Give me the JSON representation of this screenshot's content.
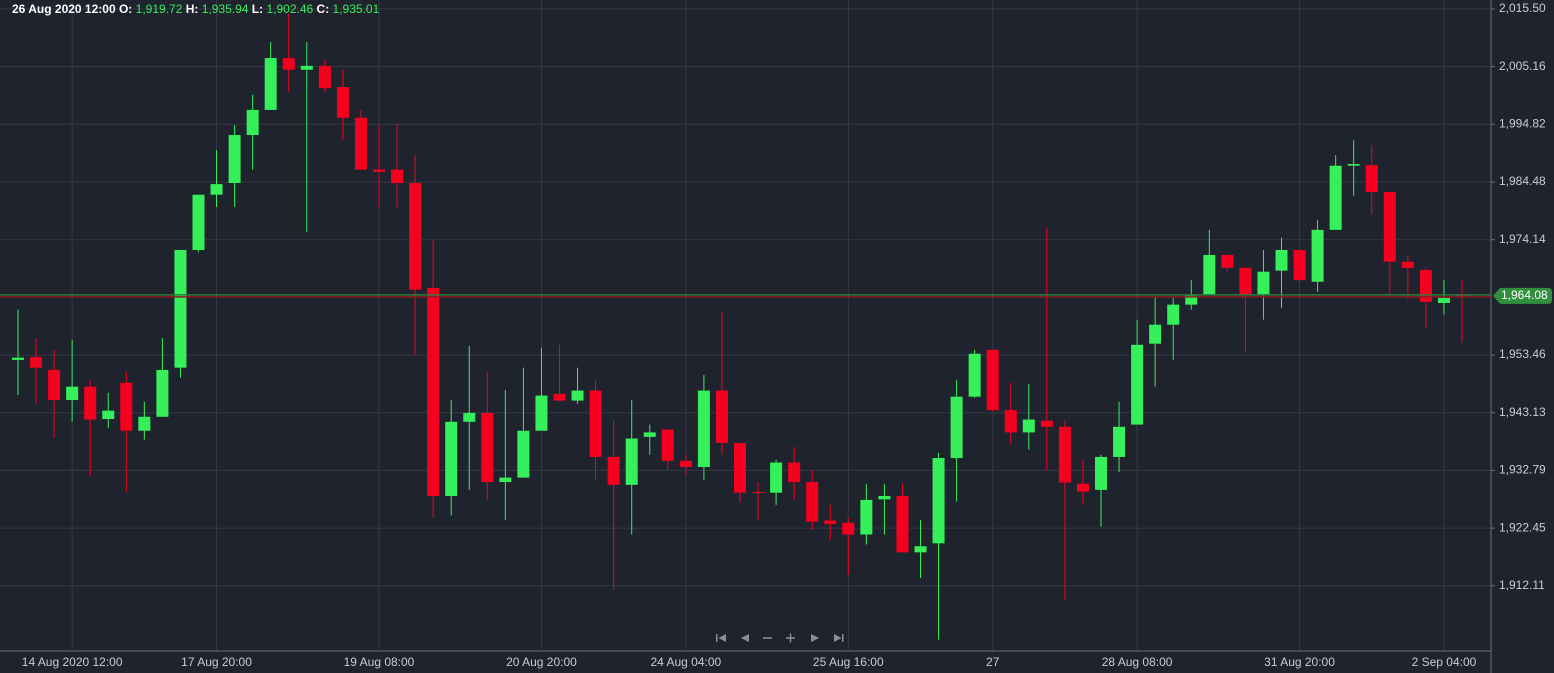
{
  "header": {
    "time": "26 Aug 2020 12:00",
    "fields": [
      {
        "label": "O:",
        "value": "1,919.72"
      },
      {
        "label": "H:",
        "value": "1,935.94"
      },
      {
        "label": "L:",
        "value": "1,902.46"
      },
      {
        "label": "C:",
        "value": "1,935.01"
      }
    ]
  },
  "chart_data": {
    "type": "candlestick",
    "categories": [
      null,
      null,
      null,
      "14 Aug 2020 12:00",
      null,
      null,
      null,
      null,
      null,
      null,
      null,
      "17 Aug 20:00",
      null,
      null,
      null,
      null,
      null,
      null,
      null,
      null,
      "19 Aug 08:00",
      null,
      null,
      null,
      null,
      null,
      null,
      null,
      null,
      "20 Aug 20:00",
      null,
      null,
      null,
      null,
      null,
      null,
      null,
      "24 Aug 04:00",
      null,
      null,
      null,
      null,
      null,
      null,
      null,
      null,
      "25 Aug 16:00",
      null,
      null,
      null,
      null,
      null,
      null,
      null,
      "27",
      null,
      null,
      null,
      null,
      null,
      null,
      null,
      "28 Aug 08:00",
      null,
      null,
      null,
      null,
      null,
      null,
      null,
      null,
      "31 Aug 20:00",
      null,
      null,
      null,
      null,
      null,
      null,
      null,
      "2 Sep 04:00",
      null
    ],
    "open": [
      1952.6,
      1953.1,
      1950.8,
      1945.4,
      1947.8,
      1942.0,
      1948.5,
      1939.9,
      1942.4,
      1951.2,
      1972.3,
      1982.2,
      1984.3,
      1992.9,
      1997.4,
      2006.7,
      2004.6,
      2005.3,
      2001.5,
      1996.0,
      1986.7,
      1986.7,
      1984.3,
      1965.5,
      1928.2,
      1941.5,
      1943.1,
      1930.7,
      1931.5,
      1939.9,
      1946.5,
      1945.3,
      1947.1,
      1935.2,
      1930.2,
      1938.8,
      1940.1,
      1934.5,
      1933.4,
      1947.1,
      1937.7,
      1928.9,
      1928.8,
      1934.2,
      1930.7,
      1923.8,
      1923.4,
      1921.3,
      1927.6,
      1928.2,
      1918.1,
      1919.72,
      1935.0,
      1946.0,
      1954.4,
      1943.6,
      1939.6,
      1941.7,
      1940.6,
      1930.4,
      1929.3,
      1935.2,
      1941.0,
      1955.5,
      1958.9,
      1962.5,
      1964.3,
      1971.4,
      1969.1,
      1964.3,
      1968.6,
      1972.3,
      1966.6,
      1975.9,
      1987.4,
      1987.5,
      1982.7,
      1970.2,
      1968.7,
      1962.8,
      1964.3
    ],
    "high": [
      1961.6,
      1956.5,
      1954.4,
      1956.2,
      1949.0,
      1946.7,
      1950.5,
      1945.1,
      1956.5,
      1972.3,
      1982.2,
      1990.2,
      1994.7,
      2000.1,
      2009.6,
      2014.6,
      2009.6,
      2006.4,
      2004.6,
      1997.4,
      1994.7,
      1994.9,
      1989.3,
      1974.1,
      1945.4,
      1955.1,
      1950.5,
      1947.2,
      1951.2,
      1954.8,
      1955.3,
      1951.2,
      1949.0,
      1941.9,
      1945.4,
      1941.0,
      1940.1,
      1935.6,
      1949.9,
      1961.2,
      1937.7,
      1930.7,
      1934.7,
      1937.0,
      1932.9,
      1926.6,
      1924.3,
      1930.4,
      1930.4,
      1930.4,
      1923.9,
      1935.94,
      1949.0,
      1954.4,
      1954.4,
      1948.5,
      1948.3,
      1976.3,
      1941.7,
      1934.7,
      1935.6,
      1945.1,
      1959.8,
      1963.9,
      1963.7,
      1966.9,
      1975.9,
      1971.4,
      1969.1,
      1972.3,
      1974.5,
      1972.3,
      1977.7,
      1989.3,
      1992.0,
      1991.1,
      1982.7,
      1971.4,
      1969.1,
      1966.9,
      1967.1
    ],
    "low": [
      1946.3,
      1944.7,
      1938.6,
      1941.5,
      1931.8,
      1940.4,
      1929.0,
      1938.3,
      1942.4,
      1949.4,
      1971.9,
      1980.0,
      1980.0,
      1986.7,
      1997.4,
      2000.6,
      1975.5,
      2000.6,
      1992.0,
      1986.7,
      1980.0,
      1980.0,
      1953.5,
      1924.3,
      1924.7,
      1929.3,
      1927.5,
      1923.9,
      1931.5,
      1939.9,
      1945.3,
      1944.7,
      1931.1,
      1911.4,
      1921.3,
      1935.6,
      1932.9,
      1932.0,
      1931.1,
      1935.6,
      1927.0,
      1923.9,
      1926.6,
      1927.5,
      1922.1,
      1920.4,
      1914.1,
      1919.5,
      1921.3,
      1918.2,
      1913.5,
      1902.46,
      1927.2,
      1945.8,
      1943.3,
      1937.4,
      1936.5,
      1932.9,
      1909.6,
      1926.6,
      1922.7,
      1932.5,
      1941.0,
      1947.8,
      1952.6,
      1961.6,
      1964.3,
      1968.4,
      1954.0,
      1959.8,
      1961.9,
      1966.6,
      1964.8,
      1975.9,
      1982.0,
      1978.6,
      1964.1,
      1963.4,
      1958.3,
      1960.7,
      1955.7
    ],
    "close": [
      1953.0,
      1951.2,
      1945.4,
      1947.8,
      1941.9,
      1943.5,
      1939.9,
      1942.4,
      1950.8,
      1972.3,
      1982.2,
      1984.1,
      1992.9,
      1997.4,
      2006.7,
      2004.6,
      2005.3,
      2001.3,
      1996.0,
      1986.7,
      1986.3,
      1984.3,
      1965.2,
      1928.2,
      1941.5,
      1943.1,
      1930.7,
      1931.5,
      1939.9,
      1946.2,
      1945.3,
      1947.1,
      1935.2,
      1930.2,
      1938.5,
      1939.6,
      1934.5,
      1933.4,
      1947.1,
      1937.7,
      1928.8,
      1928.8,
      1934.2,
      1930.7,
      1923.6,
      1923.2,
      1921.3,
      1927.5,
      1928.2,
      1918.1,
      1919.2,
      1935.01,
      1946.0,
      1953.7,
      1943.6,
      1939.6,
      1941.9,
      1940.6,
      1930.6,
      1929.0,
      1935.2,
      1940.6,
      1955.3,
      1958.9,
      1962.5,
      1964.1,
      1971.4,
      1969.1,
      1964.3,
      1968.4,
      1972.3,
      1966.9,
      1975.9,
      1987.4,
      1987.7,
      1982.7,
      1970.2,
      1969.1,
      1963.0,
      1963.7,
      1964.08
    ],
    "up_color": "#35f05a",
    "down_color": "#f5001f",
    "ylim": [
      1900.6,
      2017.1
    ],
    "yticks": [
      {
        "value": 1912.11,
        "label": "1,912.11"
      },
      {
        "value": 1922.45,
        "label": "1,922.45"
      },
      {
        "value": 1932.79,
        "label": "1,932.79"
      },
      {
        "value": 1943.13,
        "label": "1,943.13"
      },
      {
        "value": 1953.46,
        "label": "1,953.46"
      },
      {
        "value": 1974.14,
        "label": "1,974.14"
      },
      {
        "value": 1984.48,
        "label": "1,984.48"
      },
      {
        "value": 1994.82,
        "label": "1,994.82"
      },
      {
        "value": 2005.16,
        "label": "2,005.16"
      },
      {
        "value": 2015.5,
        "label": "2,015.50"
      }
    ],
    "last_price": {
      "value": 1964.08,
      "label": "1,964.08"
    },
    "grid": true
  }
}
